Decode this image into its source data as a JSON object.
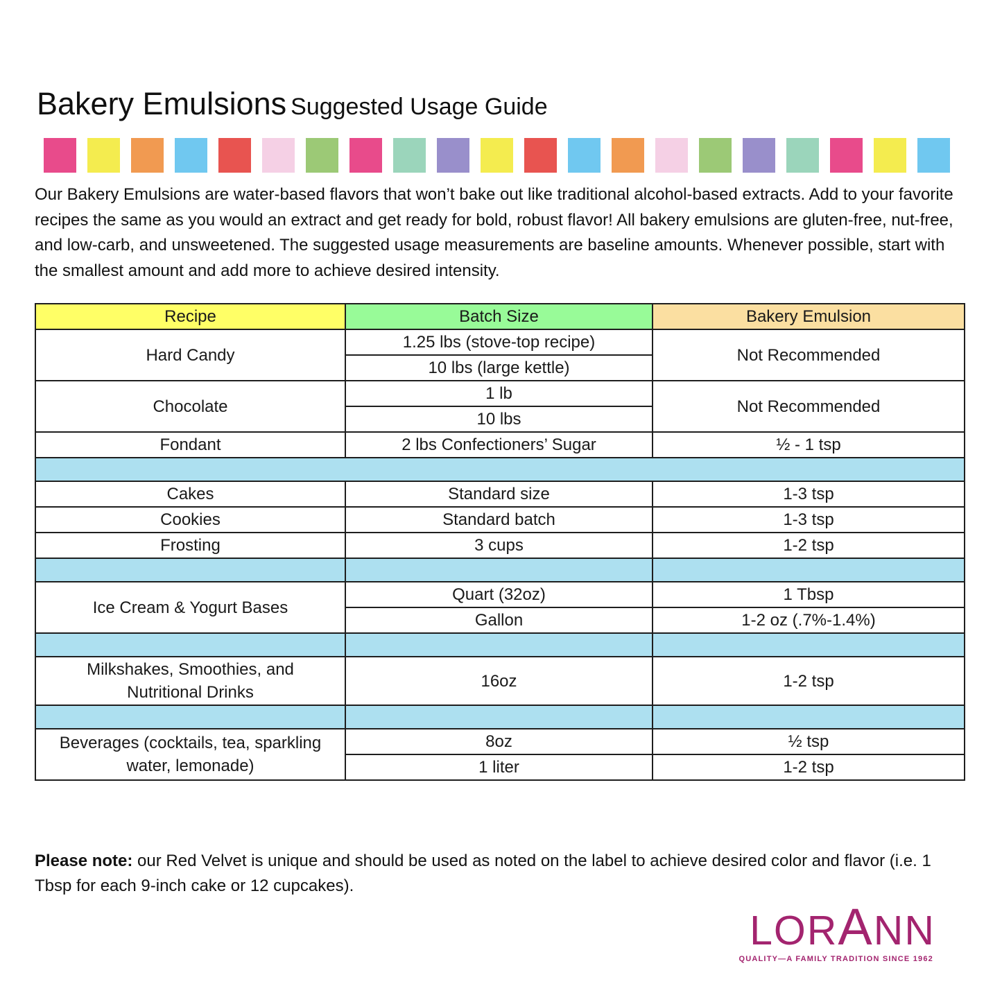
{
  "title": {
    "main": "Bakery Emulsions",
    "subtitle": "Suggested Usage Guide"
  },
  "color_strip": [
    "#E84B8B",
    "#F4EC4F",
    "#F19A51",
    "#70C8F0",
    "#E85450",
    "#F5D0E5",
    "#9CC976",
    "#E84B8B",
    "#9BD5BB",
    "#998FCB",
    "#F4EC4F",
    "#E85450",
    "#70C8F0",
    "#F19A51",
    "#F5D0E5",
    "#9CC976",
    "#998FCB",
    "#9BD5BB",
    "#E84B8B",
    "#F4EC4F",
    "#70C8F0"
  ],
  "intro": "Our Bakery Emulsions are water-based flavors that won’t bake out like traditional alcohol-based extracts. Add to your favorite recipes the same as you would an extract and get ready for bold, robust flavor! All bakery emulsions are gluten-free, nut-free, and low-carb, and unsweetened. The suggested usage measurements are baseline amounts. Whenever possible, start with the smallest amount and add more to achieve desired intensity.",
  "table": {
    "headers": [
      {
        "label": "Recipe",
        "color": "#FFFF66"
      },
      {
        "label": "Batch Size",
        "color": "#98FB98"
      },
      {
        "label": "Bakery Emulsion",
        "color": "#FBDFA1"
      }
    ],
    "separator_color": "#ADE0F0",
    "rows": [
      {
        "cells": [
          {
            "text": "Hard Candy",
            "col": 0,
            "rowspan": 2
          },
          {
            "text": "1.25 lbs (stove-top recipe)",
            "col": 1
          },
          {
            "text": "Not Recommended",
            "col": 2,
            "rowspan": 2
          }
        ]
      },
      {
        "cells": [
          {
            "text": "10 lbs (large kettle)",
            "col": 1
          }
        ]
      },
      {
        "cells": [
          {
            "text": "Chocolate",
            "col": 0,
            "rowspan": 2
          },
          {
            "text": "1 lb",
            "col": 1
          },
          {
            "text": "Not Recommended",
            "col": 2,
            "rowspan": 2
          }
        ]
      },
      {
        "cells": [
          {
            "text": "10 lbs",
            "col": 1
          }
        ]
      },
      {
        "cells": [
          {
            "text": "Fondant",
            "col": 0
          },
          {
            "text": "2 lbs Confectioners’ Sugar",
            "col": 1
          },
          {
            "text": "½ - 1 tsp",
            "col": 2
          }
        ]
      },
      {
        "separator": true,
        "merged": true
      },
      {
        "cells": [
          {
            "text": "Cakes",
            "col": 0
          },
          {
            "text": "Standard size",
            "col": 1
          },
          {
            "text": "1-3 tsp",
            "col": 2
          }
        ]
      },
      {
        "cells": [
          {
            "text": "Cookies",
            "col": 0
          },
          {
            "text": "Standard batch",
            "col": 1
          },
          {
            "text": "1-3 tsp",
            "col": 2
          }
        ]
      },
      {
        "cells": [
          {
            "text": "Frosting",
            "col": 0
          },
          {
            "text": "3 cups",
            "col": 1
          },
          {
            "text": "1-2 tsp",
            "col": 2
          }
        ]
      },
      {
        "separator": true
      },
      {
        "cells": [
          {
            "text": "Ice Cream & Yogurt Bases",
            "col": 0,
            "rowspan": 2
          },
          {
            "text": "Quart (32oz)",
            "col": 1
          },
          {
            "text": "1 Tbsp",
            "col": 2
          }
        ]
      },
      {
        "cells": [
          {
            "text": "Gallon",
            "col": 1
          },
          {
            "text": "1-2 oz (.7%-1.4%)",
            "col": 2
          }
        ]
      },
      {
        "separator": true
      },
      {
        "cells": [
          {
            "text": "Milkshakes, Smoothies, and Nutritional Drinks",
            "col": 0
          },
          {
            "text": "16oz",
            "col": 1
          },
          {
            "text": "1-2 tsp",
            "col": 2
          }
        ]
      },
      {
        "separator": true
      },
      {
        "cells": [
          {
            "text": "Beverages (cocktails, tea, sparkling water, lemonade)",
            "col": 0,
            "rowspan": 2
          },
          {
            "text": "8oz",
            "col": 1
          },
          {
            "text": "½ tsp",
            "col": 2
          }
        ]
      },
      {
        "cells": [
          {
            "text": "1 liter",
            "col": 1
          },
          {
            "text": "1-2 tsp",
            "col": 2
          }
        ]
      }
    ]
  },
  "note": {
    "label": "Please note:",
    "text": " our Red Velvet is unique and should be used as noted on the label to achieve desired color and flavor (i.e. 1 Tbsp for each 9-inch cake or 12 cupcakes)."
  },
  "logo": {
    "segments": [
      "LOR",
      "A",
      "NN"
    ],
    "tagline": "QUALITY—A FAMILY TRADITION SINCE 1962",
    "color": "#A3246F"
  }
}
